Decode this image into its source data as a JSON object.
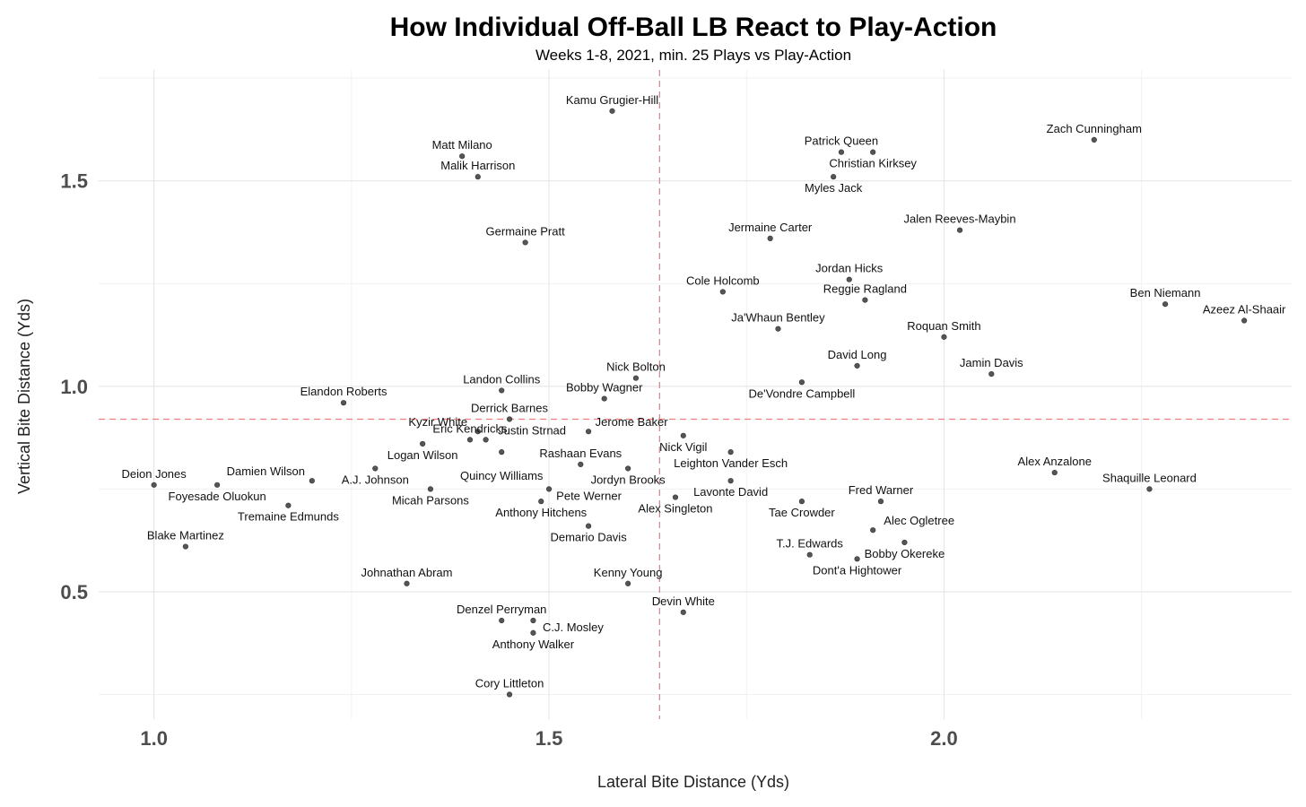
{
  "chart_data": {
    "type": "scatter",
    "title": "How Individual Off-Ball LB React to Play-Action",
    "subtitle": "Weeks 1-8, 2021, min. 25 Plays vs Play-Action",
    "xlabel": "Lateral Bite Distance (Yds)",
    "ylabel": "Vertical Bite Distance (Yds)",
    "xlim": [
      0.93,
      2.44
    ],
    "ylim": [
      0.19,
      1.77
    ],
    "x_ticks": [
      1.0,
      1.5,
      2.0
    ],
    "x_tick_labels": [
      "1.0",
      "1.5",
      "2.0"
    ],
    "y_ticks": [
      0.5,
      1.0,
      1.5
    ],
    "y_tick_labels": [
      "0.5",
      "1.0",
      "1.5"
    ],
    "grid": true,
    "legend": "none",
    "reference_lines": {
      "x": 1.64,
      "y": 0.92,
      "color": "#f08080",
      "style": "dashed"
    },
    "point_color": "#555555",
    "points": [
      {
        "name": "Kamu Grugier-Hill",
        "x": 1.58,
        "y": 1.67
      },
      {
        "name": "Zach Cunningham",
        "x": 2.19,
        "y": 1.6
      },
      {
        "name": "Matt Milano",
        "x": 1.39,
        "y": 1.56
      },
      {
        "name": "Malik Harrison",
        "x": 1.41,
        "y": 1.51
      },
      {
        "name": "Patrick Queen",
        "x": 1.87,
        "y": 1.57
      },
      {
        "name": "Christian Kirksey",
        "x": 1.91,
        "y": 1.57
      },
      {
        "name": "Myles Jack",
        "x": 1.86,
        "y": 1.51
      },
      {
        "name": "Germaine Pratt",
        "x": 1.47,
        "y": 1.35
      },
      {
        "name": "Jermaine Carter",
        "x": 1.78,
        "y": 1.36
      },
      {
        "name": "Jalen Reeves-Maybin",
        "x": 2.02,
        "y": 1.38
      },
      {
        "name": "Jordan Hicks",
        "x": 1.88,
        "y": 1.26
      },
      {
        "name": "Reggie Ragland",
        "x": 1.9,
        "y": 1.21
      },
      {
        "name": "Cole Holcomb",
        "x": 1.72,
        "y": 1.23
      },
      {
        "name": "Ben Niemann",
        "x": 2.28,
        "y": 1.2
      },
      {
        "name": "Azeez Al-Shaair",
        "x": 2.38,
        "y": 1.16
      },
      {
        "name": "Roquan Smith",
        "x": 2.0,
        "y": 1.12
      },
      {
        "name": "Ja'Whaun Bentley",
        "x": 1.79,
        "y": 1.14
      },
      {
        "name": "David Long",
        "x": 1.89,
        "y": 1.05
      },
      {
        "name": "De'Vondre Campbell",
        "x": 1.82,
        "y": 1.01
      },
      {
        "name": "Jamin Davis",
        "x": 2.06,
        "y": 1.03
      },
      {
        "name": "Nick Bolton",
        "x": 1.61,
        "y": 1.02
      },
      {
        "name": "Bobby Wagner",
        "x": 1.57,
        "y": 0.97
      },
      {
        "name": "Landon Collins",
        "x": 1.44,
        "y": 0.99
      },
      {
        "name": "Elandon Roberts",
        "x": 1.24,
        "y": 0.96
      },
      {
        "name": "Derrick Barnes",
        "x": 1.45,
        "y": 0.92
      },
      {
        "name": "Kyzir White",
        "x": 1.41,
        "y": 0.89
      },
      {
        "name": "Justin Strnad",
        "x": 1.42,
        "y": 0.87
      },
      {
        "name": "Logan Wilson",
        "x": 1.34,
        "y": 0.86
      },
      {
        "name": "Eric Kendricks",
        "x": 1.4,
        "y": 0.87
      },
      {
        "name": "Jerome Baker",
        "x": 1.55,
        "y": 0.89
      },
      {
        "name": "Nick Vigil",
        "x": 1.67,
        "y": 0.88
      },
      {
        "name": "Leighton Vander Esch",
        "x": 1.73,
        "y": 0.84
      },
      {
        "name": "A.J. Johnson",
        "x": 1.28,
        "y": 0.8
      },
      {
        "name": "Quincy Williams",
        "x": 1.44,
        "y": 0.84
      },
      {
        "name": "Rashaan Evans",
        "x": 1.54,
        "y": 0.81
      },
      {
        "name": "Jordyn Brooks",
        "x": 1.6,
        "y": 0.8
      },
      {
        "name": "Lavonte David",
        "x": 1.73,
        "y": 0.77
      },
      {
        "name": "Alex Anzalone",
        "x": 2.14,
        "y": 0.79
      },
      {
        "name": "Deion Jones",
        "x": 1.0,
        "y": 0.76
      },
      {
        "name": "Foyesade Oluokun",
        "x": 1.08,
        "y": 0.76
      },
      {
        "name": "Damien Wilson",
        "x": 1.2,
        "y": 0.77
      },
      {
        "name": "Tremaine Edmunds",
        "x": 1.17,
        "y": 0.71
      },
      {
        "name": "Micah Parsons",
        "x": 1.35,
        "y": 0.75
      },
      {
        "name": "Pete Werner",
        "x": 1.5,
        "y": 0.75
      },
      {
        "name": "Anthony Hitchens",
        "x": 1.49,
        "y": 0.72
      },
      {
        "name": "Alex Singleton",
        "x": 1.66,
        "y": 0.73
      },
      {
        "name": "Tae Crowder",
        "x": 1.82,
        "y": 0.72
      },
      {
        "name": "Fred Warner",
        "x": 1.92,
        "y": 0.72
      },
      {
        "name": "Shaquille Leonard",
        "x": 2.26,
        "y": 0.75
      },
      {
        "name": "Demario Davis",
        "x": 1.55,
        "y": 0.66
      },
      {
        "name": "Alec Ogletree",
        "x": 1.91,
        "y": 0.65
      },
      {
        "name": "T.J. Edwards",
        "x": 1.83,
        "y": 0.59
      },
      {
        "name": "Bobby Okereke",
        "x": 1.95,
        "y": 0.62
      },
      {
        "name": "Dont'a Hightower",
        "x": 1.89,
        "y": 0.58
      },
      {
        "name": "Blake Martinez",
        "x": 1.04,
        "y": 0.61
      },
      {
        "name": "Kenny Young",
        "x": 1.6,
        "y": 0.52
      },
      {
        "name": "Johnathan Abram",
        "x": 1.32,
        "y": 0.52
      },
      {
        "name": "Devin White",
        "x": 1.67,
        "y": 0.45
      },
      {
        "name": "Denzel Perryman",
        "x": 1.44,
        "y": 0.43
      },
      {
        "name": "C.J. Mosley",
        "x": 1.48,
        "y": 0.43
      },
      {
        "name": "Anthony Walker",
        "x": 1.48,
        "y": 0.4
      },
      {
        "name": "Cory Littleton",
        "x": 1.45,
        "y": 0.25
      }
    ]
  }
}
